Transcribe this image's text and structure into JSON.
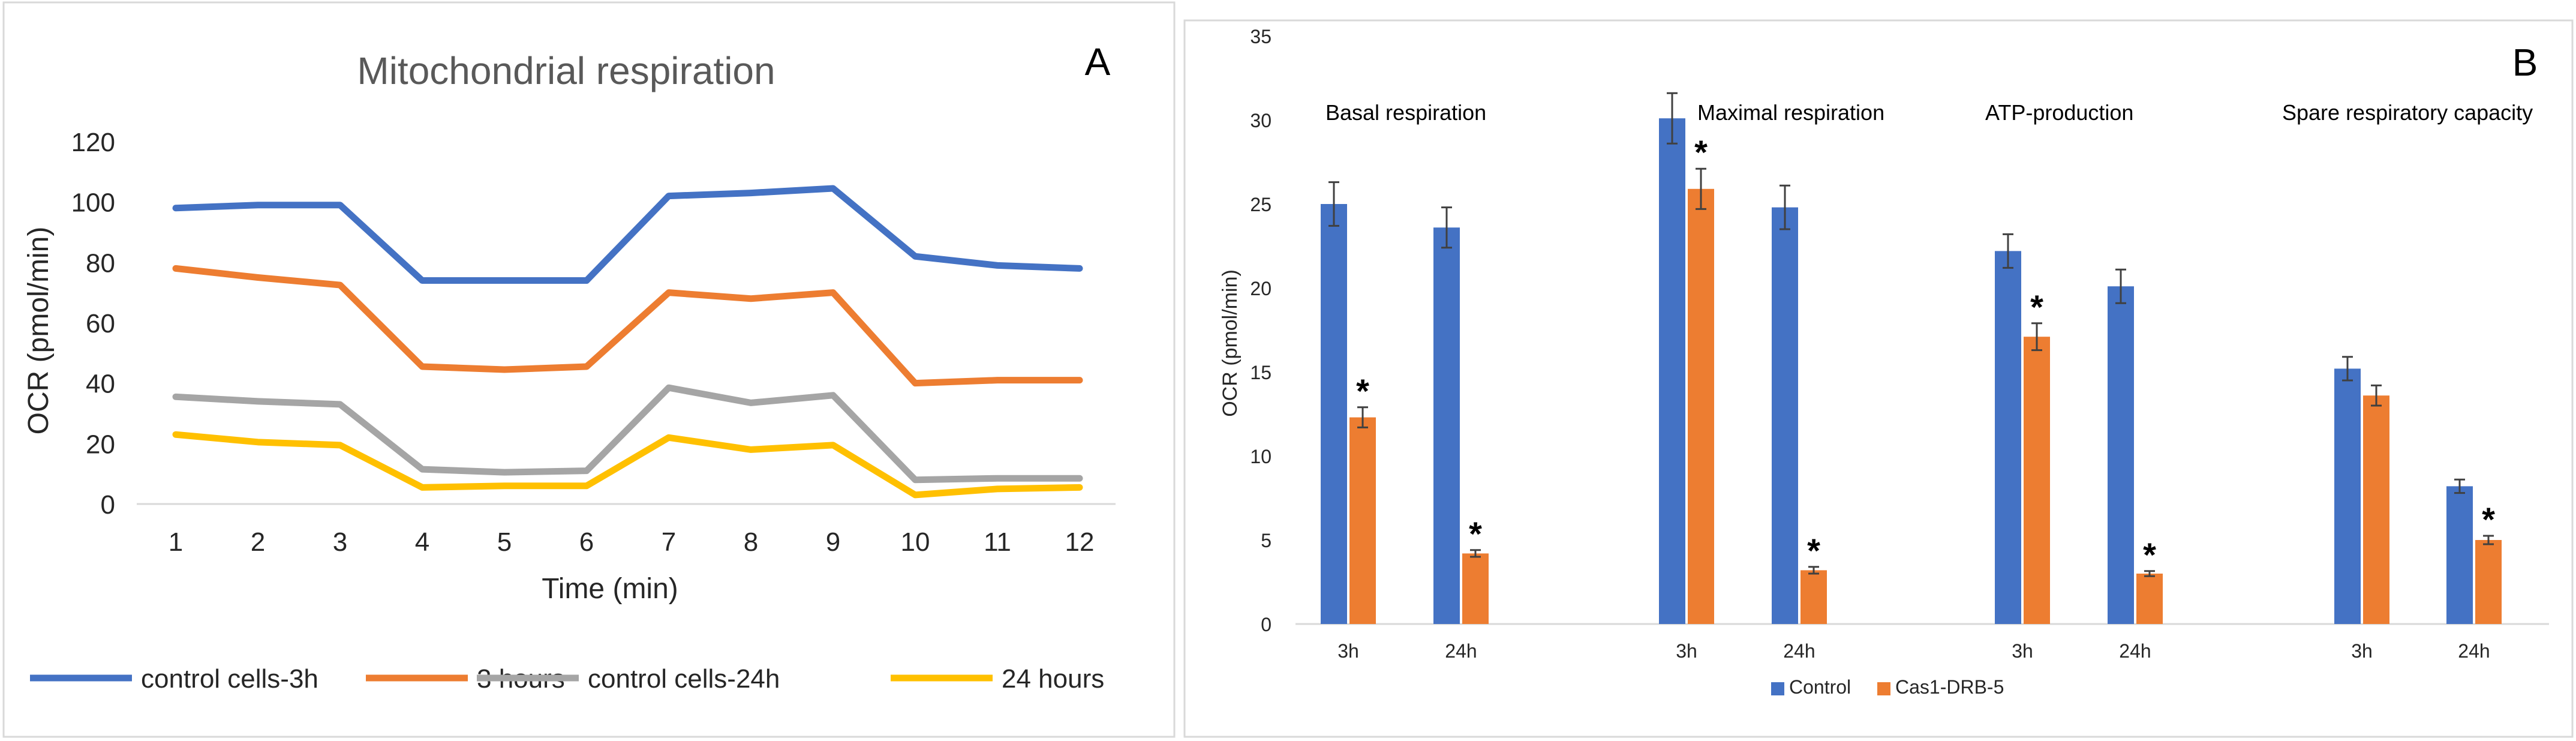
{
  "chart_data": [
    {
      "panel_label": "A",
      "type": "line",
      "title": "Mitochondrial respiration",
      "xlabel": "Time (min)",
      "ylabel": "OCR (pmol/min)",
      "x": [
        1,
        2,
        3,
        4,
        5,
        6,
        7,
        8,
        9,
        10,
        11,
        12
      ],
      "ylim": [
        0,
        120
      ],
      "yticks": [
        0,
        20,
        40,
        60,
        80,
        100,
        120
      ],
      "grid": false,
      "legend_position": "bottom",
      "series": [
        {
          "name": "control cells-3h",
          "color": "#4472C4",
          "values": [
            98,
            99,
            99,
            74,
            74,
            74,
            102,
            103,
            104.5,
            82,
            79,
            78
          ]
        },
        {
          "name": "3 hours",
          "color": "#ED7D31",
          "values": [
            78,
            75,
            72.5,
            45.5,
            44.5,
            45.5,
            70,
            68,
            70,
            40,
            41,
            41
          ]
        },
        {
          "name": "control cells-24h",
          "color": "#A5A5A5",
          "values": [
            35.5,
            34,
            33,
            11.5,
            10.5,
            11,
            38.5,
            33.5,
            36,
            8,
            8.5,
            8.5
          ]
        },
        {
          "name": "24 hours",
          "color": "#FFC000",
          "values": [
            23,
            20.5,
            19.5,
            5.5,
            6,
            6,
            22,
            18,
            19.5,
            3,
            5,
            5.5
          ]
        }
      ]
    },
    {
      "panel_label": "B",
      "type": "bar",
      "ylabel": "OCR (pmol/min)",
      "ylim": [
        0,
        35
      ],
      "yticks": [
        0,
        5,
        10,
        15,
        20,
        25,
        30,
        35
      ],
      "grid": false,
      "legend_position": "bottom",
      "categories": [
        "3h",
        "24h",
        "3h",
        "24h",
        "3h",
        "24h",
        "3h",
        "24h"
      ],
      "groups": [
        {
          "label": "Basal respiration",
          "start": 0
        },
        {
          "label": "Maximal respiration",
          "start": 2
        },
        {
          "label": "ATP-production",
          "start": 4
        },
        {
          "label": "Spare respiratory capacity",
          "start": 6
        }
      ],
      "series": [
        {
          "name": "Control",
          "color": "#4472C4",
          "values": [
            25,
            23.6,
            30.1,
            24.8,
            22.2,
            20.1,
            15.2,
            8.2
          ],
          "errors": [
            1.3,
            1.2,
            1.5,
            1.3,
            1.0,
            1.0,
            0.7,
            0.4
          ],
          "significance": [
            "",
            "",
            "",
            "",
            "",
            "",
            "",
            ""
          ]
        },
        {
          "name": "Cas1-DRB-5",
          "color": "#ED7D31",
          "values": [
            12.3,
            4.2,
            25.9,
            3.2,
            17.1,
            3.0,
            13.6,
            5.0
          ],
          "errors": [
            0.6,
            0.2,
            1.2,
            0.2,
            0.8,
            0.15,
            0.6,
            0.25
          ],
          "significance": [
            "*",
            "*",
            "*",
            "*",
            "*",
            "*",
            "",
            "*"
          ]
        }
      ]
    }
  ]
}
